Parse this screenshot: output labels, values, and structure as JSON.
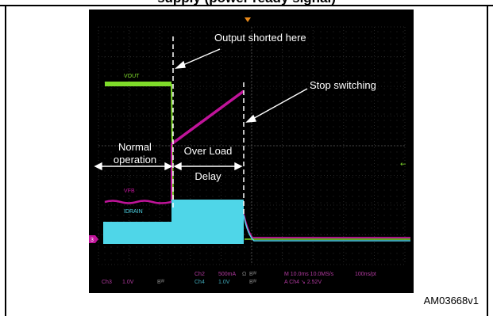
{
  "header": {
    "title_fragment": "supply (power ready signal)"
  },
  "figure_id": "AM03668v1",
  "chart_data": {
    "type": "line",
    "title": "",
    "grid": true,
    "annotations": {
      "output_shorted": "Output shorted here",
      "stop_switching": "Stop switching",
      "normal_operation": [
        "Normal",
        "operation"
      ],
      "overload_delay": [
        "Over Load",
        "Delay"
      ]
    },
    "series": [
      {
        "name": "VOUT",
        "color": "#7fdc2a"
      },
      {
        "name": "VFB",
        "color": "#c0149a"
      },
      {
        "name": "IDRAIN",
        "color": "#4fd6e8"
      }
    ],
    "marker": "3",
    "status": {
      "ch3": "Ch3",
      "ch3_scale": "1.0V",
      "bw1": "Bᵂ",
      "ch2": "Ch2",
      "ch2_scale": "500mA",
      "ohm": "Ω",
      "bw2": "Bᵂ",
      "ch4": "Ch4",
      "ch4_scale": "1.0V",
      "bw3": "Bᵂ",
      "bw4": "Bᵂ",
      "timebase": "M 10.0ms 10.0MS/s",
      "pts": "100ns/pt",
      "trigger": "A  Ch4  ↘  2.52V"
    }
  }
}
